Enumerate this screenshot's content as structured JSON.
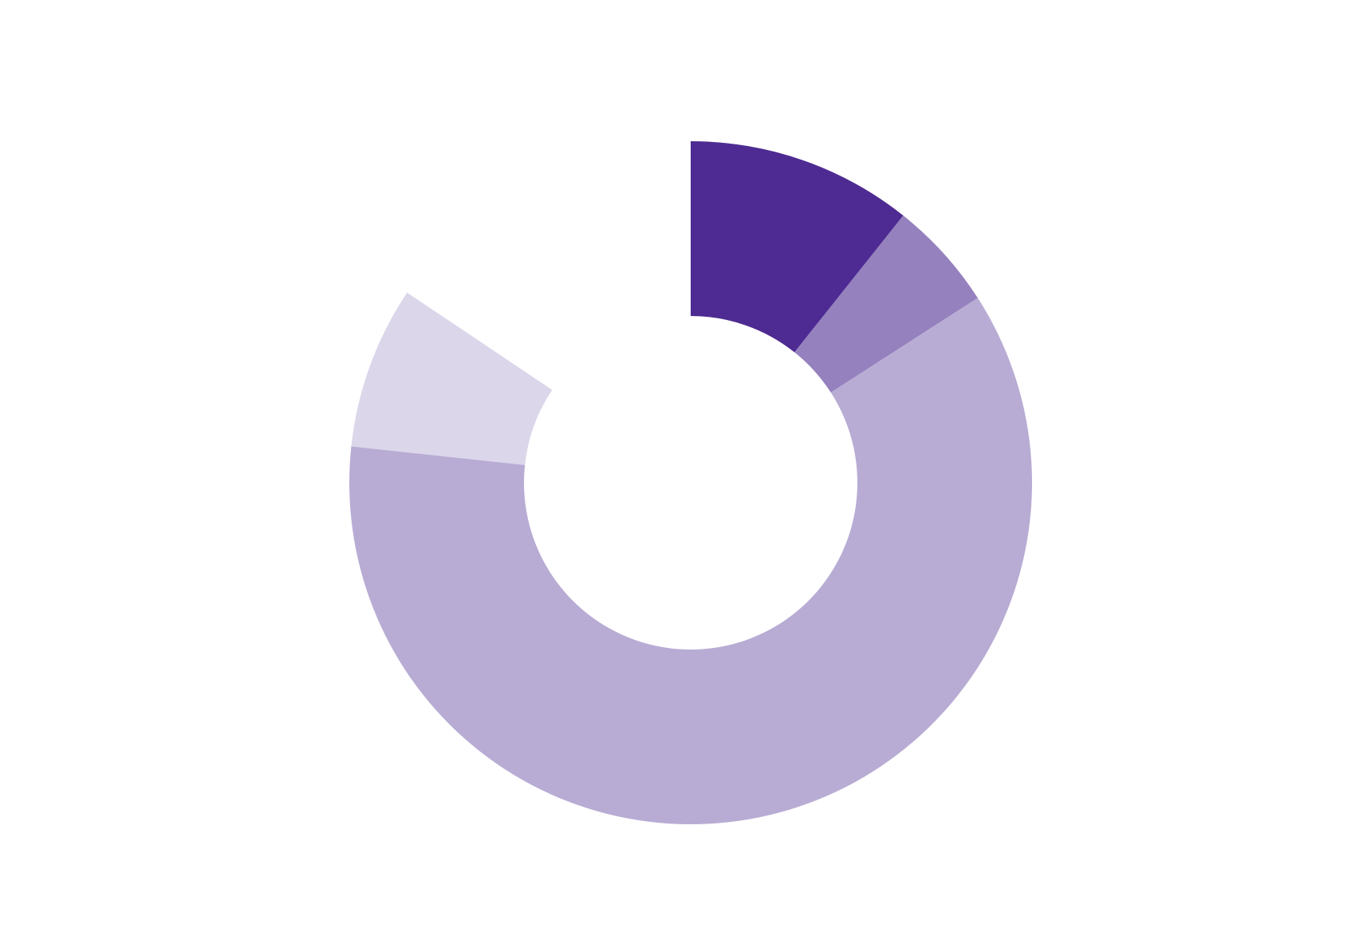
{
  "chart_data": {
    "type": "donut",
    "values": [
      10.7,
      5.2,
      60.8,
      7.7,
      15.6
    ],
    "colors": [
      "#4e2b92",
      "#9581be",
      "#b8acd4",
      "#dbd6ea",
      "#ffffff"
    ]
  }
}
